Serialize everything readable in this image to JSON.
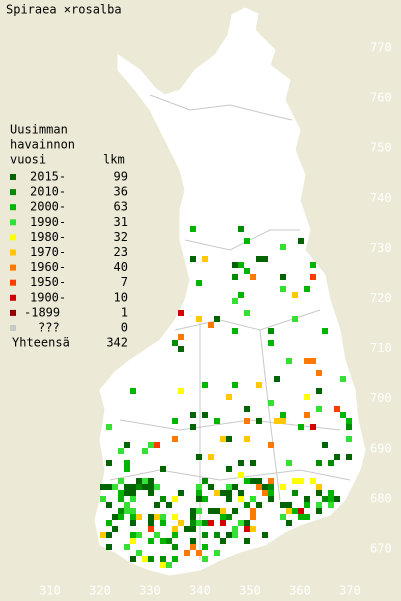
{
  "title": "Spiraea ×rosalba",
  "legend": {
    "heading": [
      "Uusimman",
      "havainnon",
      "vuosi"
    ],
    "count_heading": "lkm",
    "items": [
      {
        "label": "2015-",
        "count": 99,
        "color": "#006400"
      },
      {
        "label": "2010-",
        "count": 36,
        "color": "#008c00"
      },
      {
        "label": "2000-",
        "count": 63,
        "color": "#00b400"
      },
      {
        "label": "1990-",
        "count": 31,
        "color": "#33e033"
      },
      {
        "label": "1980-",
        "count": 32,
        "color": "#ffff00"
      },
      {
        "label": "1970-",
        "count": 23,
        "color": "#ffc800"
      },
      {
        "label": "1960-",
        "count": 40,
        "color": "#ff7800"
      },
      {
        "label": "1950-",
        "count": 7,
        "color": "#ff3c00"
      },
      {
        "label": "1900-",
        "count": 10,
        "color": "#d20000"
      },
      {
        "label": "-1899",
        "count": 1,
        "color": "#8c0000"
      },
      {
        "label": "???",
        "count": 0,
        "color": "#c8c8c8"
      }
    ],
    "total_label": "Yhteensä",
    "total": 342
  },
  "yticks": [
    670,
    680,
    690,
    700,
    710,
    720,
    730,
    740,
    750,
    760,
    770
  ],
  "xticks": [
    310,
    320,
    330,
    340,
    350,
    360,
    370
  ]
}
